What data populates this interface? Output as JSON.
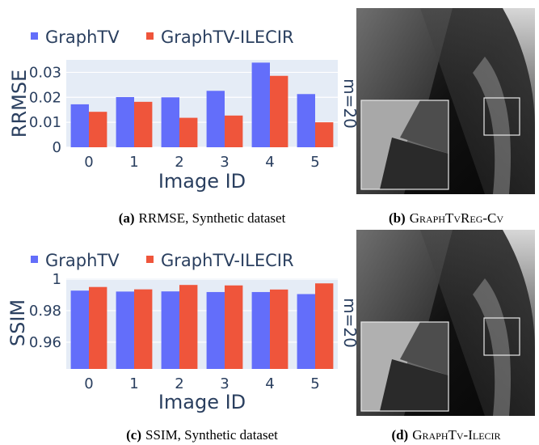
{
  "colors": {
    "plot_bg": "#e5ecf6",
    "series_a": "#636efa",
    "series_b": "#ef553b"
  },
  "chart_data": [
    {
      "type": "bar",
      "categories": [
        "0",
        "1",
        "2",
        "3",
        "4",
        "5"
      ],
      "series": [
        {
          "name": "GraphTV",
          "values": [
            0.0172,
            0.0201,
            0.02,
            0.0226,
            0.0339,
            0.0213
          ]
        },
        {
          "name": "GraphTV-ILECIR",
          "values": [
            0.0142,
            0.0182,
            0.0118,
            0.0127,
            0.0286,
            0.01
          ]
        }
      ],
      "xlabel": "Image ID",
      "ylabel": "RRMSE",
      "ylim": [
        0,
        0.035
      ],
      "yticks": [
        0,
        0.01,
        0.02,
        0.03
      ],
      "ytick_labels": [
        "0",
        "0.01",
        "0.02",
        "0.03"
      ],
      "side_label": "m=20",
      "grid": true,
      "legend": "top",
      "caption": {
        "label": "(a)",
        "text": "RRMSE, Synthetic dataset"
      }
    },
    {
      "type": "bar",
      "categories": [
        "0",
        "1",
        "2",
        "3",
        "4",
        "5"
      ],
      "series": [
        {
          "name": "GraphTV",
          "values": [
            0.9927,
            0.9921,
            0.9922,
            0.9918,
            0.9918,
            0.9905
          ]
        },
        {
          "name": "GraphTV-ILECIR",
          "values": [
            0.995,
            0.9935,
            0.9963,
            0.996,
            0.9934,
            0.9973
          ]
        }
      ],
      "xlabel": "Image ID",
      "ylabel": "SSIM",
      "ylim": [
        0.943,
        1.0005
      ],
      "yticks": [
        0.96,
        0.98,
        1
      ],
      "ytick_labels": [
        "0.96",
        "0.98",
        "1"
      ],
      "side_label": "m=20",
      "grid": true,
      "legend": "top",
      "caption": {
        "label": "(c)",
        "text": "SSIM, Synthetic dataset"
      }
    }
  ],
  "images": [
    {
      "caption": {
        "label": "(b)",
        "text": "GraphTvReg-Cv"
      }
    },
    {
      "caption": {
        "label": "(d)",
        "text": "GraphTv-Ilecir"
      }
    }
  ]
}
